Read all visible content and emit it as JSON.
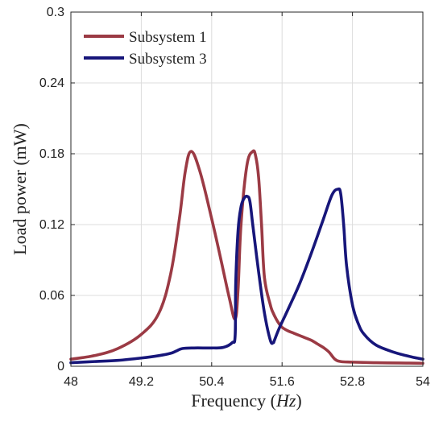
{
  "chart_data": {
    "type": "line",
    "xlabel": "Frequency",
    "xlabel_unit": "Hz",
    "ylabel": "Load power (mW)",
    "xlim": [
      48,
      54
    ],
    "ylim": [
      0,
      0.3
    ],
    "x_ticks": [
      "48",
      "49.2",
      "50.4",
      "51.6",
      "52.8",
      "54"
    ],
    "y_ticks": [
      "0",
      "0.06",
      "0.12",
      "0.18",
      "0.24",
      "0.3"
    ],
    "grid": true,
    "legend_position": "top-left",
    "series": [
      {
        "name": "Subsystem 1",
        "color": "#9b3a44",
        "x": [
          48.0,
          48.4,
          48.8,
          49.2,
          49.5,
          49.7,
          49.85,
          49.95,
          50.05,
          50.2,
          50.4,
          50.55,
          50.7,
          50.8,
          50.85,
          50.9,
          51.0,
          51.1,
          51.15,
          51.2,
          51.25,
          51.3,
          51.4,
          51.45,
          51.5,
          51.55,
          51.6,
          51.7,
          51.8,
          51.9,
          52.0,
          52.1,
          52.2,
          52.3,
          52.4,
          52.5,
          52.6,
          52.8,
          53.2,
          53.6,
          54.0
        ],
        "y": [
          0.006,
          0.009,
          0.015,
          0.027,
          0.045,
          0.078,
          0.125,
          0.165,
          0.182,
          0.165,
          0.125,
          0.092,
          0.058,
          0.04,
          0.065,
          0.12,
          0.17,
          0.182,
          0.178,
          0.16,
          0.12,
          0.075,
          0.052,
          0.045,
          0.04,
          0.036,
          0.033,
          0.03,
          0.028,
          0.026,
          0.024,
          0.022,
          0.019,
          0.016,
          0.012,
          0.006,
          0.004,
          0.0035,
          0.003,
          0.0028,
          0.0025
        ]
      },
      {
        "name": "Subsystem 3",
        "color": "#17167a",
        "x": [
          48.0,
          48.4,
          48.8,
          49.2,
          49.5,
          49.7,
          49.8,
          49.9,
          50.1,
          50.4,
          50.6,
          50.75,
          50.8,
          50.81,
          50.85,
          50.9,
          50.95,
          51.0,
          51.05,
          51.1,
          51.2,
          51.3,
          51.4,
          51.45,
          51.47,
          51.55,
          51.7,
          51.9,
          52.1,
          52.3,
          52.45,
          52.55,
          52.6,
          52.65,
          52.7,
          52.8,
          52.9,
          53.0,
          53.2,
          53.5,
          53.8,
          54.0
        ],
        "y": [
          0.003,
          0.004,
          0.005,
          0.007,
          0.009,
          0.011,
          0.013,
          0.015,
          0.0155,
          0.0155,
          0.016,
          0.02,
          0.026,
          0.07,
          0.115,
          0.135,
          0.142,
          0.144,
          0.14,
          0.12,
          0.08,
          0.045,
          0.022,
          0.02,
          0.022,
          0.032,
          0.048,
          0.07,
          0.096,
          0.124,
          0.145,
          0.15,
          0.146,
          0.12,
          0.085,
          0.052,
          0.036,
          0.027,
          0.018,
          0.012,
          0.008,
          0.006
        ]
      }
    ]
  }
}
